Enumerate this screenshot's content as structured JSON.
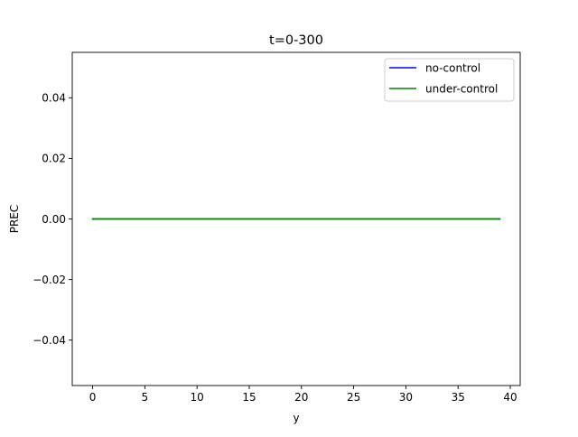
{
  "chart_data": {
    "type": "line",
    "title": "t=0-300",
    "xlabel": "y",
    "ylabel": "PREC",
    "xlim": [
      -1.95,
      40.95
    ],
    "ylim": [
      -0.055,
      0.055
    ],
    "xticks": [
      0,
      5,
      10,
      15,
      20,
      25,
      30,
      35,
      40
    ],
    "xtick_labels": [
      "0",
      "5",
      "10",
      "15",
      "20",
      "25",
      "30",
      "35",
      "40"
    ],
    "yticks": [
      -0.04,
      -0.02,
      0.0,
      0.02,
      0.04
    ],
    "ytick_labels": [
      "−0.04",
      "−0.02",
      "0.00",
      "0.02",
      "0.04"
    ],
    "grid": false,
    "legend_position": "top-right",
    "x": [
      0,
      1,
      2,
      3,
      4,
      5,
      6,
      7,
      8,
      9,
      10,
      11,
      12,
      13,
      14,
      15,
      16,
      17,
      18,
      19,
      20,
      21,
      22,
      23,
      24,
      25,
      26,
      27,
      28,
      29,
      30,
      31,
      32,
      33,
      34,
      35,
      36,
      37,
      38,
      39
    ],
    "series": [
      {
        "name": "no-control",
        "color": "#0000ff",
        "values": [
          0,
          0,
          0,
          0,
          0,
          0,
          0,
          0,
          0,
          0,
          0,
          0,
          0,
          0,
          0,
          0,
          0,
          0,
          0,
          0,
          0,
          0,
          0,
          0,
          0,
          0,
          0,
          0,
          0,
          0,
          0,
          0,
          0,
          0,
          0,
          0,
          0,
          0,
          0,
          0
        ]
      },
      {
        "name": "under-control",
        "color": "#008000",
        "values": [
          0,
          0,
          0,
          0,
          0,
          0,
          0,
          0,
          0,
          0,
          0,
          0,
          0,
          0,
          0,
          0,
          0,
          0,
          0,
          0,
          0,
          0,
          0,
          0,
          0,
          0,
          0,
          0,
          0,
          0,
          0,
          0,
          0,
          0,
          0,
          0,
          0,
          0,
          0,
          0
        ]
      }
    ]
  }
}
